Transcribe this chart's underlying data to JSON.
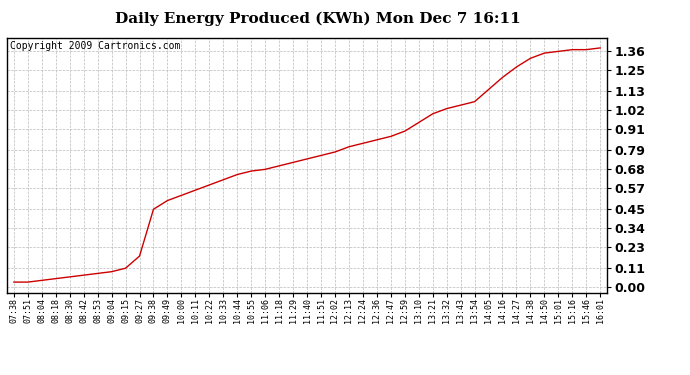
{
  "title": "Daily Energy Produced (KWh) Mon Dec 7 16:11",
  "copyright_text": "Copyright 2009 Cartronics.com",
  "line_color": "#cc0000",
  "background_color": "#ffffff",
  "plot_bg_color": "#ffffff",
  "grid_color": "#aaaaaa",
  "yticks": [
    0.0,
    0.11,
    0.23,
    0.34,
    0.45,
    0.57,
    0.68,
    0.79,
    0.91,
    1.02,
    1.13,
    1.25,
    1.36
  ],
  "ylim": [
    -0.03,
    1.44
  ],
  "x_labels": [
    "07:38",
    "07:51",
    "08:04",
    "08:18",
    "08:30",
    "08:42",
    "08:53",
    "09:04",
    "09:15",
    "09:27",
    "09:38",
    "09:49",
    "10:00",
    "10:11",
    "10:22",
    "10:33",
    "10:44",
    "10:55",
    "11:06",
    "11:18",
    "11:29",
    "11:40",
    "11:51",
    "12:02",
    "12:13",
    "12:24",
    "12:36",
    "12:47",
    "12:59",
    "13:10",
    "13:21",
    "13:32",
    "13:43",
    "13:54",
    "14:05",
    "14:16",
    "14:27",
    "14:38",
    "14:50",
    "15:01",
    "15:16",
    "15:46",
    "16:01"
  ],
  "data_y": [
    0.03,
    0.03,
    0.04,
    0.05,
    0.06,
    0.07,
    0.08,
    0.09,
    0.11,
    0.18,
    0.45,
    0.5,
    0.53,
    0.56,
    0.59,
    0.62,
    0.65,
    0.67,
    0.68,
    0.7,
    0.72,
    0.74,
    0.76,
    0.78,
    0.81,
    0.83,
    0.85,
    0.87,
    0.9,
    0.95,
    1.0,
    1.03,
    1.05,
    1.07,
    1.14,
    1.21,
    1.27,
    1.32,
    1.35,
    1.36,
    1.37,
    1.37,
    1.38
  ],
  "title_fontsize": 11,
  "ytick_fontsize": 9,
  "xtick_fontsize": 6,
  "copyright_fontsize": 7
}
